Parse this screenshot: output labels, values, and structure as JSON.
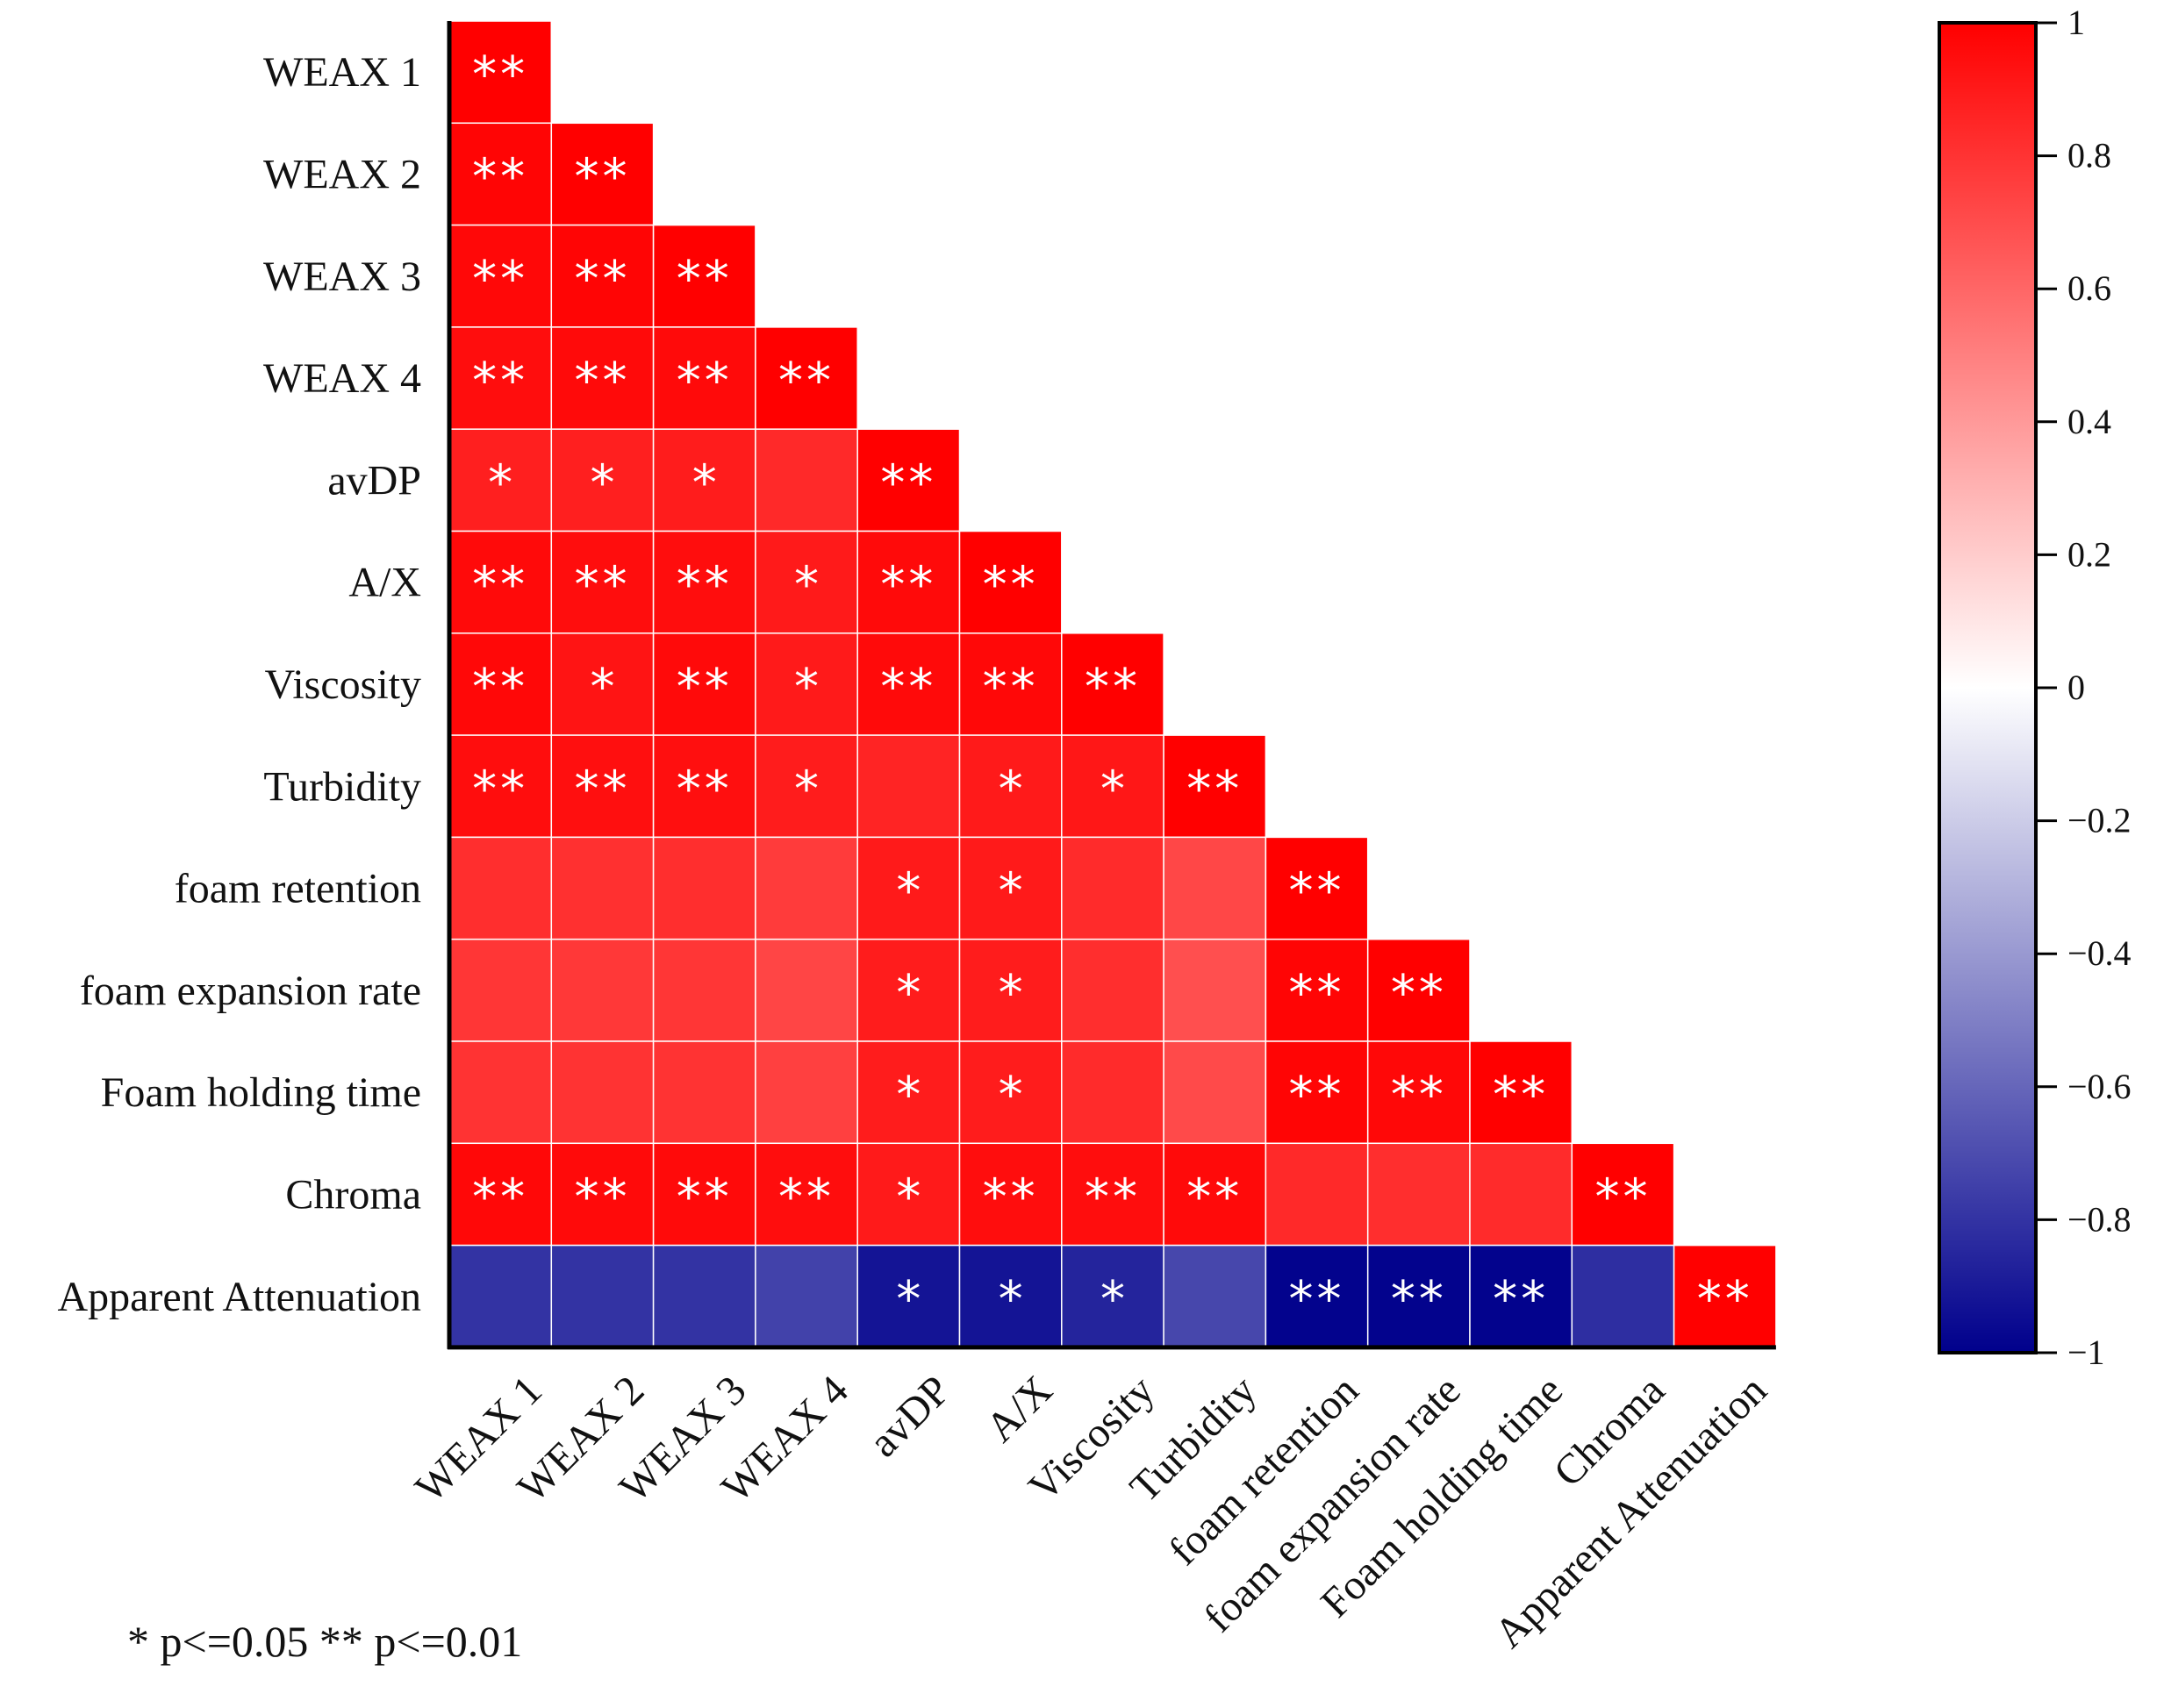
{
  "chart_data": {
    "type": "heatmap",
    "subtype": "lower-triangular correlation matrix",
    "variables": [
      "WEAX 1",
      "WEAX 2",
      "WEAX 3",
      "WEAX 4",
      "avDP",
      "A/X",
      "Viscosity",
      "Turbidity",
      "foam retention",
      "foam expansion rate",
      "Foam holding time",
      "Chroma",
      "Apparent Attenuation"
    ],
    "values": [
      [
        1.0
      ],
      [
        0.98,
        1.0
      ],
      [
        0.97,
        0.98,
        1.0
      ],
      [
        0.95,
        0.96,
        0.96,
        1.0
      ],
      [
        0.88,
        0.88,
        0.89,
        0.84,
        1.0
      ],
      [
        0.96,
        0.95,
        0.95,
        0.9,
        0.96,
        1.0
      ],
      [
        0.97,
        0.92,
        0.96,
        0.9,
        0.96,
        0.97,
        1.0
      ],
      [
        0.95,
        0.94,
        0.94,
        0.89,
        0.86,
        0.9,
        0.91,
        1.0
      ],
      [
        0.82,
        0.81,
        0.82,
        0.77,
        0.9,
        0.9,
        0.83,
        0.72,
        1.0
      ],
      [
        0.79,
        0.78,
        0.79,
        0.73,
        0.89,
        0.89,
        0.82,
        0.69,
        0.98,
        1.0
      ],
      [
        0.8,
        0.8,
        0.8,
        0.75,
        0.89,
        0.89,
        0.83,
        0.71,
        0.98,
        0.97,
        1.0
      ],
      [
        0.97,
        0.96,
        0.96,
        0.95,
        0.9,
        0.95,
        0.95,
        0.96,
        0.84,
        0.82,
        0.83,
        1.0
      ],
      [
        -0.8,
        -0.8,
        -0.8,
        -0.74,
        -0.92,
        -0.92,
        -0.86,
        -0.72,
        -0.99,
        -0.99,
        -0.99,
        -0.82,
        1.0
      ]
    ],
    "significance": [
      [
        "**"
      ],
      [
        "**",
        "**"
      ],
      [
        "**",
        "**",
        "**"
      ],
      [
        "**",
        "**",
        "**",
        "**"
      ],
      [
        "*",
        "*",
        "*",
        "",
        "**"
      ],
      [
        "**",
        "**",
        "**",
        "*",
        "**",
        "**"
      ],
      [
        "**",
        "*",
        "**",
        "*",
        "**",
        "**",
        "**"
      ],
      [
        "**",
        "**",
        "**",
        "*",
        "",
        "*",
        "*",
        "**"
      ],
      [
        "",
        "",
        "",
        "",
        "*",
        "*",
        "",
        "",
        "**"
      ],
      [
        "",
        "",
        "",
        "",
        "*",
        "*",
        "",
        "",
        "**",
        "**"
      ],
      [
        "",
        "",
        "",
        "",
        "*",
        "*",
        "",
        "",
        "**",
        "**",
        "**"
      ],
      [
        "**",
        "**",
        "**",
        "**",
        "*",
        "**",
        "**",
        "**",
        "",
        "",
        "",
        "**"
      ],
      [
        "",
        "",
        "",
        "",
        "*",
        "*",
        "*",
        "",
        "**",
        "**",
        "**",
        "",
        "**"
      ]
    ],
    "colorbar": {
      "range": [
        -1,
        1
      ],
      "ticks": [
        "1",
        "0.8",
        "0.6",
        "0.4",
        "0.2",
        "0",
        "−0.2",
        "−0.4",
        "−0.6",
        "−0.8",
        "−1"
      ],
      "colors": {
        "negative": "#00008c",
        "zero": "#ffffff",
        "positive": "#ff0000"
      }
    },
    "note": "* p<=0.05  ** p<=0.01"
  }
}
